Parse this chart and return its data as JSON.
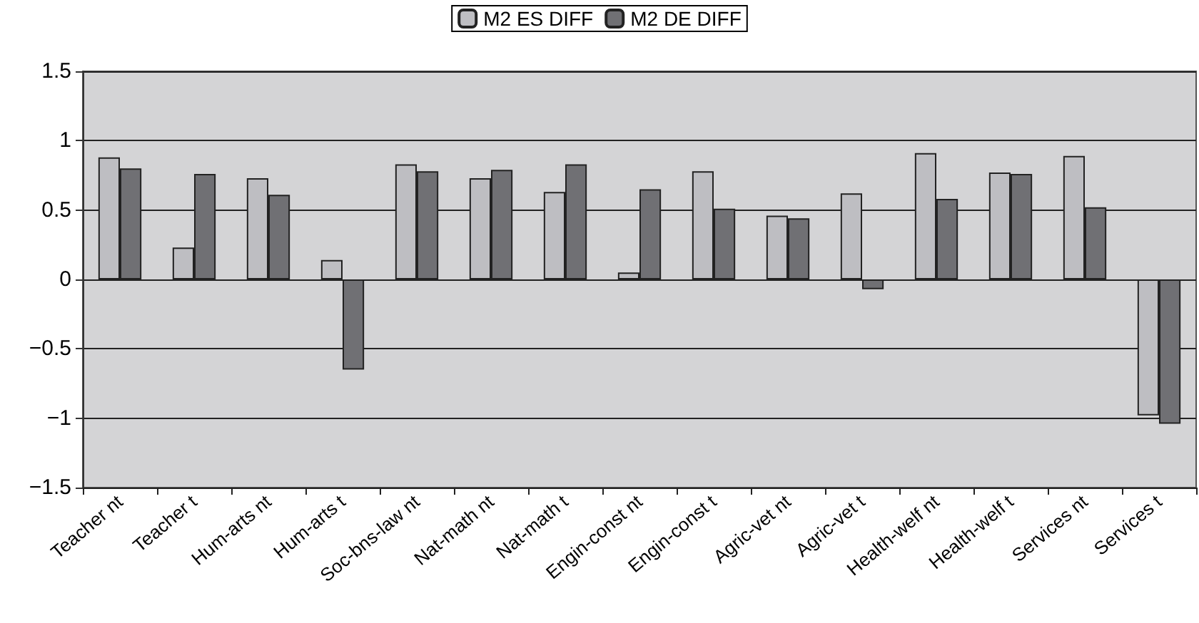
{
  "chart_data": {
    "type": "bar",
    "categories": [
      "Teacher nt",
      "Teacher t",
      "Hum-arts nt",
      "Hum-arts t",
      "Soc-bns-law nt",
      "Nat-math nt",
      "Nat-math t",
      "Engin-const nt",
      "Engin-const t",
      "Agric-vet nt",
      "Agric-vet t",
      "Health-welf nt",
      "Health-welf t",
      "Services nt",
      "Services t"
    ],
    "series": [
      {
        "name": "M2 ES DIFF",
        "color": "#bebec2",
        "values": [
          0.88,
          0.23,
          0.73,
          0.14,
          0.83,
          0.73,
          0.63,
          0.05,
          0.78,
          0.46,
          0.62,
          0.91,
          0.77,
          0.89,
          -0.98
        ]
      },
      {
        "name": "M2 DE DIFF",
        "color": "#707074",
        "values": [
          0.8,
          0.76,
          0.61,
          -0.65,
          0.78,
          0.79,
          0.83,
          0.65,
          0.51,
          0.44,
          -0.07,
          0.58,
          0.76,
          0.52,
          -1.04
        ]
      }
    ],
    "ylim": [
      -1.5,
      1.5
    ],
    "yticks": [
      -1.5,
      -1,
      -0.5,
      0,
      0.5,
      1,
      1.5
    ],
    "grid": "y",
    "legend": "top"
  }
}
